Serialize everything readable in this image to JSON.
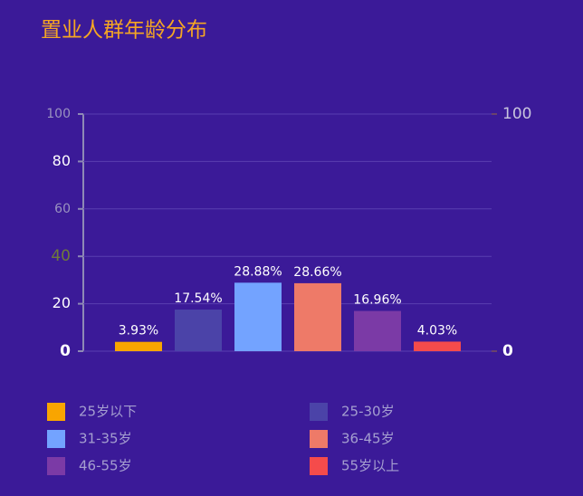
{
  "chart_data": {
    "type": "bar",
    "title": "置业人群年龄分布",
    "categories": [
      "25岁以下",
      "25-30岁",
      "31-35岁",
      "36-45岁",
      "46-55岁",
      "55岁以上"
    ],
    "values": [
      3.93,
      17.54,
      28.88,
      28.66,
      16.96,
      4.03
    ],
    "value_labels": [
      "3.93%",
      "17.54%",
      "28.88%",
      "28.66%",
      "16.96%",
      "4.03%"
    ],
    "colors": [
      "#f9a500",
      "#4b43a8",
      "#73a3ff",
      "#ee7a68",
      "#7b3aa6",
      "#f54b4b"
    ],
    "ylim": [
      0,
      100
    ],
    "yticks": [
      0,
      20,
      40,
      60,
      80,
      100
    ],
    "y2lim": [
      0,
      100
    ],
    "y2ticks": [
      0,
      100
    ],
    "grid": true
  }
}
